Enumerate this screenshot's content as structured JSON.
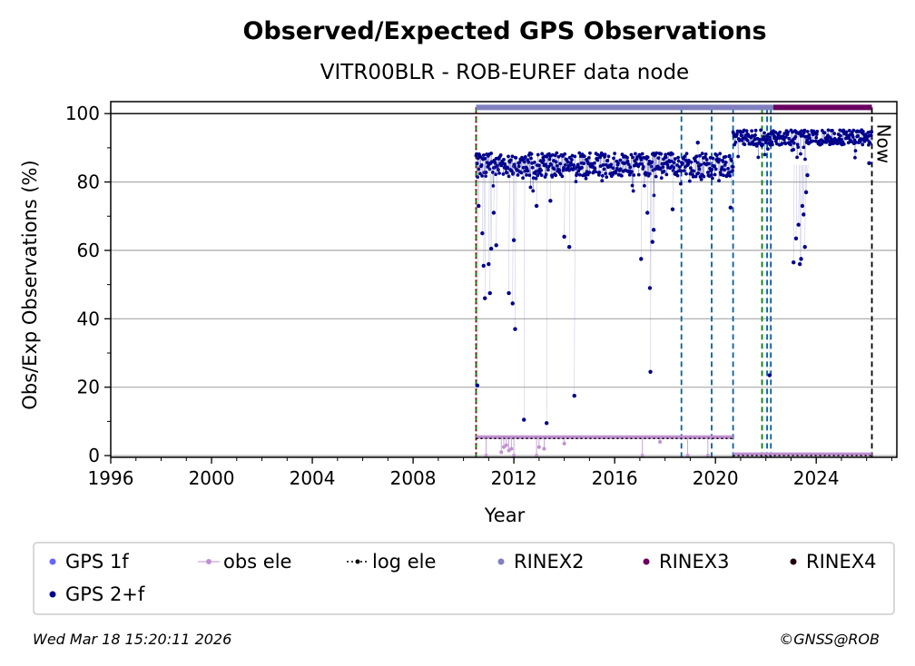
{
  "chart_data": {
    "type": "scatter",
    "title": "Observed/Expected GPS Observations",
    "subtitle": "VITR00BLR - ROB-EUREF data node",
    "xlabel": "Year",
    "ylabel": "Obs/Exp Observations (%)",
    "xlim": [
      1996,
      2027.2
    ],
    "ylim": [
      -0.5,
      103.5
    ],
    "x_ticks": [
      "1996",
      "2000",
      "2004",
      "2008",
      "2012",
      "2016",
      "2020",
      "2024"
    ],
    "y_ticks": [
      "0",
      "20",
      "40",
      "60",
      "80",
      "100"
    ],
    "grid": "horizontal",
    "now_label": "Now",
    "now_x": 2026.21,
    "vlines": [
      {
        "x": 2010.5,
        "color": "#008000",
        "style": "dashed"
      },
      {
        "x": 2010.5,
        "color": "#8b0000",
        "style": "dotted"
      },
      {
        "x": 2018.65,
        "color": "#005fa8",
        "style": "dashed"
      },
      {
        "x": 2019.85,
        "color": "#005fa8",
        "style": "dashed"
      },
      {
        "x": 2020.7,
        "color": "#005fa8",
        "style": "dashed"
      },
      {
        "x": 2021.85,
        "color": "#008000",
        "style": "dashed"
      },
      {
        "x": 2022.05,
        "color": "#005fa8",
        "style": "dashed"
      },
      {
        "x": 2022.2,
        "color": "#005fa8",
        "style": "dashed"
      },
      {
        "x": 2026.21,
        "color": "#000000",
        "style": "dashed"
      }
    ],
    "rinex_bars": [
      {
        "name": "RINEX2",
        "x_start": 2010.5,
        "x_end": 2022.3,
        "y": 101.8,
        "color": "#8080c0"
      },
      {
        "name": "RINEX3",
        "x_start": 2022.3,
        "x_end": 2026.21,
        "y": 101.8,
        "color": "#6a0060"
      }
    ],
    "log_ele": [
      {
        "x_start": 2010.5,
        "x_end": 2020.7,
        "y": 5
      },
      {
        "x_start": 2020.7,
        "x_end": 2026.21,
        "y": 0
      }
    ],
    "gps2f_segments": [
      {
        "x_start": 2010.5,
        "x_end": 2020.7,
        "level": 85,
        "spread": 3.5
      },
      {
        "x_start": 2020.7,
        "x_end": 2026.21,
        "level": 93,
        "spread": 2.2
      }
    ],
    "gps2f_outliers": [
      [
        2010.55,
        20.5
      ],
      [
        2010.6,
        73
      ],
      [
        2010.75,
        65
      ],
      [
        2010.8,
        55.5
      ],
      [
        2010.85,
        46
      ],
      [
        2011.0,
        56
      ],
      [
        2011.05,
        47.5
      ],
      [
        2011.1,
        60.5
      ],
      [
        2011.2,
        71
      ],
      [
        2011.3,
        61.5
      ],
      [
        2011.8,
        47.5
      ],
      [
        2011.95,
        44.5
      ],
      [
        2012.0,
        63
      ],
      [
        2012.05,
        37
      ],
      [
        2012.4,
        10.5
      ],
      [
        2012.9,
        73
      ],
      [
        2013.3,
        9.5
      ],
      [
        2013.45,
        74.5
      ],
      [
        2014.0,
        64
      ],
      [
        2014.2,
        61
      ],
      [
        2014.4,
        17.5
      ],
      [
        2017.05,
        57.5
      ],
      [
        2017.3,
        71
      ],
      [
        2017.4,
        49
      ],
      [
        2017.42,
        24.5
      ],
      [
        2017.5,
        62.5
      ],
      [
        2017.55,
        66
      ],
      [
        2018.3,
        72
      ],
      [
        2019.3,
        91.5
      ],
      [
        2020.6,
        72.5
      ],
      [
        2022.15,
        23.5
      ],
      [
        2023.1,
        56.5
      ],
      [
        2023.2,
        63.5
      ],
      [
        2023.3,
        67.5
      ],
      [
        2023.35,
        56
      ],
      [
        2023.4,
        57.5
      ],
      [
        2023.45,
        73
      ],
      [
        2023.5,
        70.5
      ],
      [
        2023.55,
        61
      ],
      [
        2023.6,
        77
      ],
      [
        2023.65,
        82
      ],
      [
        2026.1,
        85.5
      ]
    ],
    "obs_ele_points": [
      [
        2010.9,
        0
      ],
      [
        2011.5,
        1
      ],
      [
        2011.6,
        2.5
      ],
      [
        2011.7,
        3
      ],
      [
        2011.8,
        1.5
      ],
      [
        2011.9,
        2
      ],
      [
        2012.0,
        0
      ],
      [
        2012.9,
        0
      ],
      [
        2013.0,
        2.5
      ],
      [
        2013.2,
        2
      ],
      [
        2014.0,
        3.5
      ],
      [
        2017.1,
        0
      ],
      [
        2017.8,
        4
      ],
      [
        2018.9,
        0
      ],
      [
        2019.7,
        0
      ]
    ],
    "legend": [
      {
        "label": "GPS 1f",
        "color": "#6666ff",
        "kind": "dot"
      },
      {
        "label": "obs ele",
        "color": "#c090d0",
        "kind": "line-dot"
      },
      {
        "label": "log ele",
        "color": "#000000",
        "kind": "dotted-line"
      },
      {
        "label": "RINEX2",
        "color": "#8080c0",
        "kind": "dot"
      },
      {
        "label": "RINEX3",
        "color": "#6a0060",
        "kind": "dot"
      },
      {
        "label": "RINEX4",
        "color": "#200010",
        "kind": "dot"
      },
      {
        "label": "GPS 2+f",
        "color": "#00008b",
        "kind": "dot"
      }
    ]
  },
  "footer": {
    "timestamp": "Wed Mar 18 15:20:11 2026",
    "credit": "©GNSS@ROB"
  }
}
